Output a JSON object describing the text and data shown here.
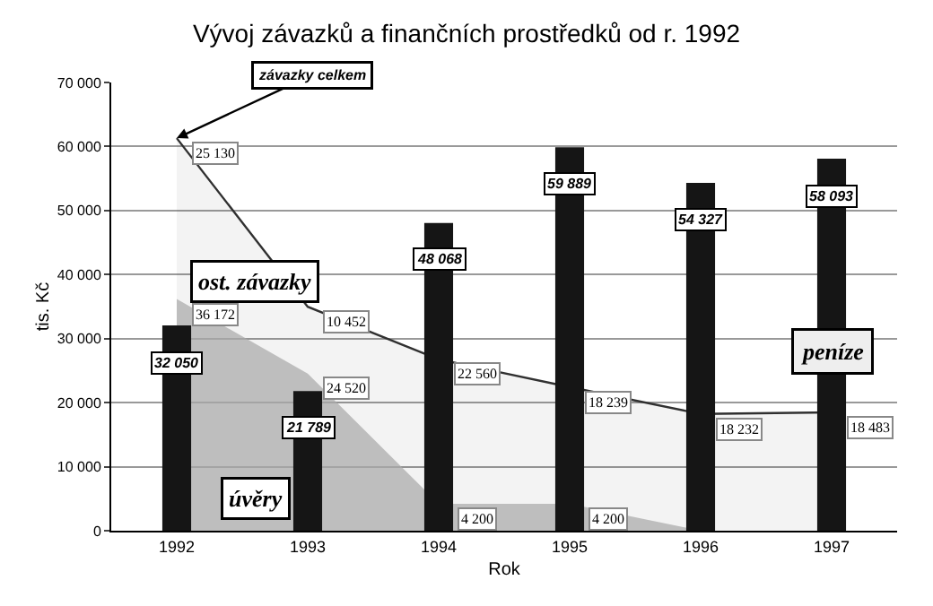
{
  "chart_data": {
    "type": "area",
    "title": "Vývoj závazků a finančních prostředků od r. 1992",
    "xlabel": "Rok",
    "ylabel": "tis. Kč",
    "categories": [
      "1992",
      "1993",
      "1994",
      "1995",
      "1996",
      "1997"
    ],
    "stacked": true,
    "series": [
      {
        "name": "úvěry",
        "color": "#a8a8a8",
        "values": [
          36172,
          24520,
          4200,
          4200,
          0,
          0
        ],
        "value_labels": [
          "36 172",
          "24 520",
          "4 200",
          "4 200",
          null,
          null
        ]
      },
      {
        "name": "ost. závazky",
        "color": "#303030",
        "values": [
          25130,
          10452,
          22560,
          18239,
          18232,
          18483
        ],
        "value_labels": [
          "25 130",
          "10 452",
          "22 560",
          "18 239",
          "18 232",
          "18 483"
        ]
      },
      {
        "name": "peníze",
        "type": "bar",
        "axis": "y2",
        "color": "#151515",
        "values": [
          32050,
          21789,
          48068,
          59889,
          54327,
          58093
        ],
        "value_labels": [
          "32 050",
          "21 789",
          "48 068",
          "59 889",
          "54 327",
          "58 093"
        ]
      }
    ],
    "annotations": [
      {
        "text": "závazky celkem",
        "x": "1992",
        "y": 61302
      }
    ],
    "ylim": [
      0,
      70000
    ],
    "y2lim": [
      0,
      70000
    ],
    "yticks": [
      {
        "value": 0,
        "label": "0"
      },
      {
        "value": 10000,
        "label": "10 000"
      },
      {
        "value": 20000,
        "label": "20 000"
      },
      {
        "value": 30000,
        "label": "30 000"
      },
      {
        "value": 40000,
        "label": "40 000"
      },
      {
        "value": 50000,
        "label": "50 000"
      },
      {
        "value": 60000,
        "label": "60 000"
      },
      {
        "value": 70000,
        "label": "70 000"
      }
    ],
    "grid": "y",
    "legend": false
  }
}
